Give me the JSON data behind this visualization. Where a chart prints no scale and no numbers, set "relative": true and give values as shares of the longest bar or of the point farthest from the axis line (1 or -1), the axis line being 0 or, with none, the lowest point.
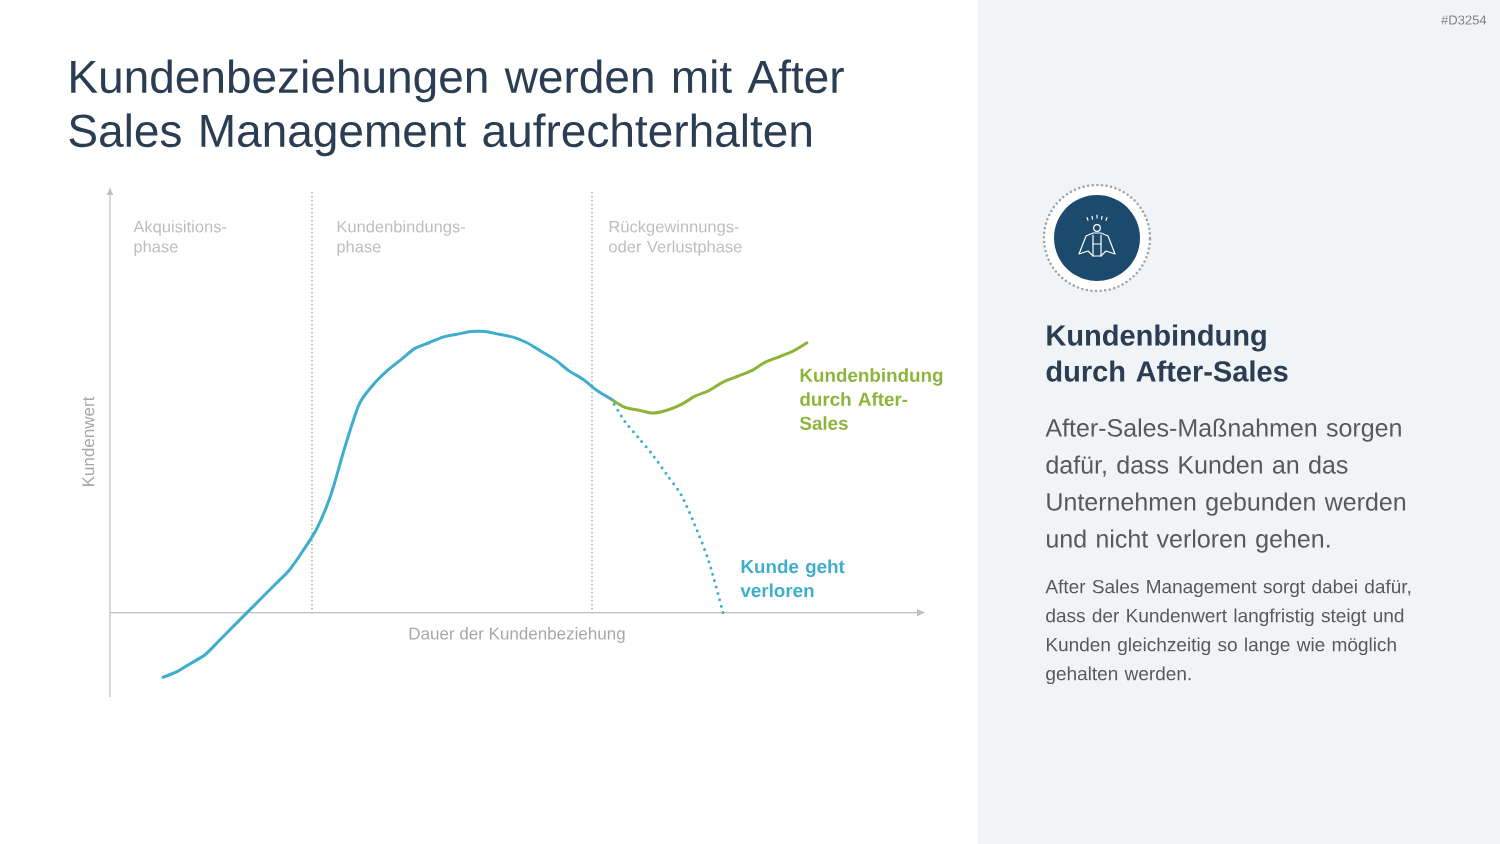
{
  "chart_data": [
    {
      "type": "line",
      "title": "Kundenbeziehungen werden mit After Sales Management aufrechterhalten",
      "xlabel": "Dauer der Kundenbeziehung",
      "ylabel": "Kundenwert",
      "relative": true,
      "categories": [
        null,
        null,
        null,
        null,
        null,
        null,
        null,
        null,
        null,
        null,
        null,
        null,
        null,
        null,
        null,
        null,
        null,
        null,
        null,
        null,
        null,
        null,
        null,
        null,
        null,
        null,
        null,
        null,
        null,
        null,
        null,
        null,
        null,
        null,
        null,
        null,
        null,
        null,
        null,
        null,
        null,
        null,
        null,
        null,
        null,
        null,
        null
      ],
      "series": [
        {
          "color": "#3DAECB",
          "values": [
            -0.23,
            -0.21,
            -0.18,
            -0.15,
            -0.1,
            -0.05,
            0.0,
            0.05,
            0.1,
            0.15,
            0.22,
            0.3,
            0.42,
            0.59,
            0.74,
            0.81,
            0.86,
            0.9,
            0.94,
            0.96,
            0.98,
            0.99,
            1.0,
            1.0,
            0.99,
            0.98,
            0.96,
            0.93,
            0.9,
            0.86,
            0.83,
            0.79,
            0.76,
            null,
            null,
            null,
            null,
            null,
            null,
            null,
            null,
            null,
            null,
            null,
            null,
            null,
            null
          ]
        },
        {
          "name": "Kundenbindung durch After-Sales",
          "color": "#8DB43A",
          "values": [
            null,
            null,
            null,
            null,
            null,
            null,
            null,
            null,
            null,
            null,
            null,
            null,
            null,
            null,
            null,
            null,
            null,
            null,
            null,
            null,
            null,
            null,
            null,
            null,
            null,
            null,
            null,
            null,
            null,
            null,
            null,
            null,
            0.76,
            0.73,
            0.72,
            0.71,
            0.72,
            0.74,
            0.77,
            0.79,
            0.82,
            0.84,
            0.86,
            0.89,
            0.91,
            0.93,
            0.96
          ]
        },
        {
          "name": "Kunde geht verloren",
          "color": "#3DAECB",
          "line_style": "dotted",
          "values": [
            null,
            null,
            null,
            null,
            null,
            null,
            null,
            null,
            null,
            null,
            null,
            null,
            null,
            null,
            null,
            null,
            null,
            null,
            null,
            null,
            null,
            null,
            null,
            null,
            null,
            null,
            null,
            null,
            null,
            null,
            null,
            null,
            0.76,
            0.68,
            0.62,
            0.56,
            0.49,
            0.42,
            0.31,
            0.18,
            0.0,
            null,
            null,
            null,
            null,
            null,
            null
          ]
        }
      ],
      "annotations": [
        "Akquisitions-phase",
        "Kundenbindungs-phase",
        "Rückgewinnungs- oder Verlustphase"
      ]
    },
    {
      "type": "other",
      "title": "Kundenbindung durch After-Sales",
      "subtitle": "After-Sales-Maßnahmen sorgen dafür, dass Kunden an das Unternehmen gebunden werden und nicht verloren gehen.",
      "annotations": [
        "After Sales Management sorgt dabei dafür, dass der Kundenwert langfristig steigt und Kunden gleichzeitig so lange wie möglich gehalten werden.",
        "#D3254"
      ]
    }
  ]
}
